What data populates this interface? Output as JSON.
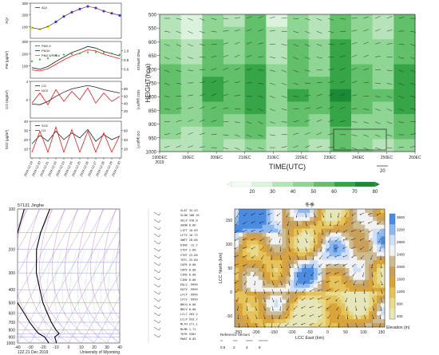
{
  "chart_data": [
    {
      "type": "line",
      "panel": "time-series-stack",
      "x_ticks": [
        "2019-12-19",
        "2019-12-20",
        "2019-12-21",
        "2019-12-22",
        "2019-12-23",
        "2019-12-24",
        "2019-12-25",
        "2019-12-26",
        "2019-12-27",
        "2019-12-28",
        "2019-12-29",
        "2019-12-30"
      ],
      "subplots": [
        {
          "ylabel": "AQI",
          "ylim": [
            0,
            300
          ],
          "yticks": [
            "100",
            "200",
            "300"
          ],
          "legend": [
            "AQI"
          ],
          "series": [
            {
              "name": "AQI",
              "values": [
                85,
                70,
                95,
                140,
                190,
                230,
                260,
                285,
                270,
                240,
                220,
                200
              ],
              "colors": [
                "#f2e600",
                "#f2e600",
                "#f2e600",
                "#3a3af0",
                "#3a3af0",
                "#8a2be2",
                "#8a2be2",
                "#8a2be2",
                "#8a2be2",
                "#8a2be2",
                "#8a2be2",
                "#3a3af0"
              ]
            }
          ]
        },
        {
          "ylabel": "PM (μg/m³)",
          "ylabel_right": "PM2.5/PM10",
          "ylim": [
            0,
            300
          ],
          "yticks": [
            "100",
            "200",
            "300"
          ],
          "yticks_right": [
            "0.6",
            "0.8",
            "1.0"
          ],
          "legend": [
            "PM2.5",
            "PM10",
            "PM2.5/PM10"
          ],
          "series": [
            {
              "name": "PM2.5",
              "color": "#d11f1f",
              "values": [
                60,
                50,
                70,
                110,
                150,
                185,
                210,
                240,
                230,
                200,
                180,
                160
              ]
            },
            {
              "name": "PM10",
              "color": "#222222",
              "values": [
                80,
                65,
                90,
                135,
                175,
                215,
                240,
                270,
                255,
                225,
                205,
                185
              ]
            },
            {
              "name": "PM2.5/PM10",
              "color": "#33bb33",
              "values": [
                0.75,
                0.78,
                0.8,
                0.85,
                0.86,
                0.87,
                0.88,
                0.9,
                0.9,
                0.89,
                0.88,
                0.86
              ]
            }
          ]
        },
        {
          "ylabel": "CO (mg/m³)",
          "ylabel_right": "NO2 (μg/m³)",
          "ylim": [
            0,
            4
          ],
          "yticks": [
            "2",
            "4"
          ],
          "yticks_right": [
            "20",
            "40",
            "60",
            "80"
          ],
          "legend": [
            "CO",
            "NO2"
          ],
          "series": [
            {
              "name": "CO",
              "color": "#222222",
              "values": [
                1.5,
                1.4,
                1.8,
                2.4,
                2.9,
                3.3,
                3.5,
                3.7,
                3.5,
                3.2,
                3.0,
                2.8
              ]
            },
            {
              "name": "NO2",
              "color": "#d11f1f",
              "values": [
                40,
                70,
                35,
                80,
                45,
                75,
                50,
                85,
                40,
                70,
                45,
                60
              ]
            }
          ]
        },
        {
          "ylabel": "SO2 (μg/m³)",
          "ylabel_right": "O3 (μg/m³)",
          "ylim": [
            0,
            40
          ],
          "yticks": [
            "10",
            "20",
            "30",
            "40"
          ],
          "yticks_right": [
            "20",
            "40",
            "60"
          ],
          "legend": [
            "SO2",
            "O3"
          ],
          "series": [
            {
              "name": "SO2",
              "color": "#222222",
              "values": [
                15,
                25,
                18,
                30,
                20,
                28,
                22,
                32,
                18,
                26,
                20,
                24
              ]
            },
            {
              "name": "O3",
              "color": "#d11f1f",
              "values": [
                5,
                30,
                5,
                35,
                5,
                32,
                5,
                30,
                5,
                28,
                5,
                25
              ]
            }
          ]
        }
      ]
    },
    {
      "type": "heatmap",
      "panel": "humidity-wind-cross-section",
      "ylabel": "HEIGHT(hpa)",
      "xlabel": "TIME(UTC)",
      "y_ticks": [
        "500",
        "550",
        "600",
        "650",
        "700",
        "750",
        "800",
        "850",
        "900",
        "950",
        "1000"
      ],
      "x_ticks": [
        "1900Z\n2019",
        "1912Z",
        "2000Z",
        "2012Z",
        "2100Z",
        "2112Z",
        "2200Z",
        "2212Z",
        "2300Z",
        "2312Z",
        "2400Z",
        "2412Z",
        "2500Z",
        "2512Z",
        "2600Z"
      ],
      "x_tick_labels_shown": [
        "190DEC\n2019",
        "190EC",
        "200EC",
        "210EC",
        "210EC",
        "220EC",
        "230EC",
        "240EC",
        "250EC",
        "260EC"
      ],
      "vector_ref_label": "20",
      "colorbar_ticks": [
        "20",
        "30",
        "40",
        "50",
        "60",
        "70",
        "80"
      ],
      "colorbar_colors": [
        "#f4fbf4",
        "#dbf2dc",
        "#b6e4b8",
        "#8fd594",
        "#62c06b",
        "#35a548",
        "#1a8a36"
      ],
      "columns": [
        [
          40,
          45,
          50,
          55,
          60,
          62,
          65,
          60,
          55,
          50,
          45
        ],
        [
          30,
          35,
          40,
          45,
          50,
          55,
          58,
          55,
          50,
          45,
          40
        ],
        [
          50,
          55,
          60,
          62,
          65,
          70,
          72,
          68,
          60,
          55,
          50
        ],
        [
          45,
          50,
          52,
          55,
          60,
          62,
          65,
          62,
          58,
          52,
          48
        ],
        [
          60,
          62,
          65,
          68,
          70,
          72,
          75,
          70,
          65,
          60,
          55
        ],
        [
          35,
          40,
          42,
          45,
          50,
          55,
          58,
          55,
          50,
          45,
          40
        ],
        [
          55,
          58,
          60,
          62,
          65,
          68,
          70,
          68,
          62,
          58,
          55
        ],
        [
          40,
          45,
          50,
          52,
          55,
          60,
          62,
          60,
          55,
          50,
          45
        ],
        [
          65,
          68,
          70,
          72,
          75,
          78,
          80,
          76,
          70,
          65,
          60
        ],
        [
          50,
          52,
          55,
          58,
          60,
          62,
          65,
          62,
          58,
          55,
          50
        ],
        [
          45,
          48,
          50,
          52,
          55,
          58,
          60,
          58,
          55,
          52,
          48
        ],
        [
          60,
          62,
          65,
          68,
          70,
          72,
          74,
          72,
          68,
          62,
          58
        ]
      ]
    },
    {
      "type": "line",
      "panel": "skew-t-sounding",
      "title": "57131 Jinghe",
      "footer_left": "12Z 21 Dec 2019",
      "footer_right": "University of Wyoming",
      "y_ticks": [
        "100",
        "200",
        "300",
        "400",
        "500",
        "600",
        "700",
        "800",
        "900",
        "1000"
      ],
      "x_ticks": [
        "-40",
        "-30",
        "-20",
        "-10",
        "0",
        "10",
        "20",
        "30",
        "40"
      ],
      "series": [
        {
          "name": "temperature",
          "color": "#000000",
          "points": [
            [
              -55,
              100
            ],
            [
              -52,
              150
            ],
            [
              -48,
              200
            ],
            [
              -38,
              300
            ],
            [
              -28,
              400
            ],
            [
              -20,
              500
            ],
            [
              -12,
              600
            ],
            [
              -5,
              700
            ],
            [
              2,
              800
            ],
            [
              6,
              850
            ],
            [
              4,
              900
            ],
            [
              8,
              1000
            ]
          ]
        },
        {
          "name": "dewpoint",
          "color": "#000000",
          "points": [
            [
              -75,
              100
            ],
            [
              -70,
              150
            ],
            [
              -66,
              200
            ],
            [
              -58,
              300
            ],
            [
              -48,
              400
            ],
            [
              -40,
              500
            ],
            [
              -30,
              600
            ],
            [
              -22,
              700
            ],
            [
              -14,
              800
            ],
            [
              -10,
              850
            ],
            [
              -4,
              900
            ],
            [
              2,
              1000
            ]
          ]
        }
      ],
      "indices": [
        "SLAT  34.43",
        "SLON 108.91",
        "SELV  410.0",
        "SHOW  8.66",
        "LIFT  10.69",
        "LFTV  10.73",
        "SWET  28.00",
        "KINX -12.7",
        "CTOT  2.60",
        "VTOT  23.00",
        "TOTL  25.60",
        "CAPE  0.00",
        "CAPV  0.00",
        "CINS  0.00",
        "CINV  0.00",
        "EQLV -9999",
        "EQTV -9999",
        "LFCT -9999",
        "LFCV -9999",
        "BRCH  0.00",
        "BRCV  0.00",
        "LCLT  263.2",
        "LCLP  933.7",
        "MLTH  271.1",
        "MLMR  1.71",
        "THTK  5362",
        "PWAT  8.05"
      ]
    },
    {
      "type": "heatmap",
      "panel": "terrain-wind-map",
      "title": "冬季",
      "xlabel": "LCC East (km)",
      "ylabel": "LCC North (km)",
      "x_ticks": [
        "-250",
        "-200",
        "-150",
        "-100",
        "-50",
        "0",
        "50",
        "100",
        "150"
      ],
      "y_ticks": [
        "150",
        "100",
        "50",
        "0",
        "-50"
      ],
      "colorbar_label": "Elevation (m)",
      "colorbar_ticks": [
        "3600",
        "3200",
        "2800",
        "2400",
        "2000",
        "1600",
        "1200",
        "800",
        "400"
      ],
      "colorbar_colors": [
        "#4b8be0",
        "#8fb9ee",
        "#cfe0f6",
        "#f2f2f2",
        "#cdbb92",
        "#c9a05a",
        "#d9a53a",
        "#e6c35a",
        "#e9d98a",
        "#e6e6b8"
      ],
      "ref_vectors_label": "Reference Vectors",
      "ref_vectors": [
        "0.5",
        "2",
        "4",
        "6"
      ]
    }
  ]
}
